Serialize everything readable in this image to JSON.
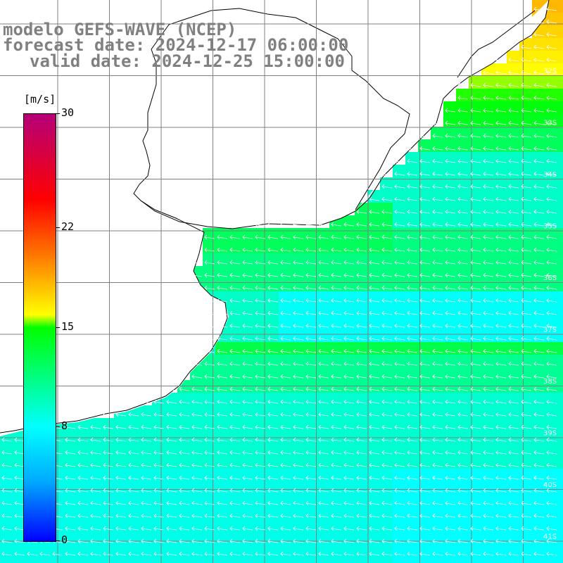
{
  "header": {
    "model_line": "modelo GEFS-WAVE (NCEP)",
    "forecast_line": "forecast date: 2024-12-17 06:00:00",
    "valid_line": "valid date: 2024-12-25 15:00:00"
  },
  "colorbar": {
    "unit": "[m/s]",
    "min": 0,
    "max": 30,
    "ticks": [
      {
        "label": "30",
        "value": 30
      },
      {
        "label": "22",
        "value": 22
      },
      {
        "label": "15",
        "value": 15
      },
      {
        "label": "8",
        "value": 8
      },
      {
        "label": "0",
        "value": 0
      }
    ],
    "colors": [
      "#0000ff",
      "#00aaff",
      "#00ffff",
      "#00ff00",
      "#ffff00",
      "#ff8000",
      "#ff0000",
      "#b40078"
    ]
  },
  "map": {
    "latitude_labels": [
      "32S",
      "33S",
      "34S",
      "35S",
      "36S",
      "37S",
      "38S",
      "39S",
      "40S",
      "41S"
    ],
    "land_color": "#ffffff",
    "grid_color": "#808080",
    "arrow_color": "#ffffff",
    "wind_direction": "from east"
  }
}
